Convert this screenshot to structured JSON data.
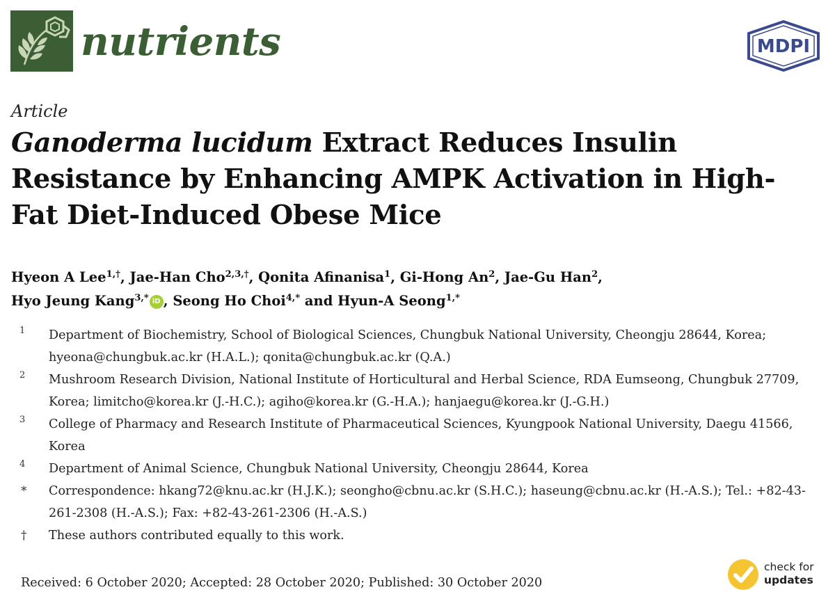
{
  "header": {
    "journal_name": "nutrients",
    "publisher_logo_text": "MDPI",
    "journal_logo_icon": "leaf-molecule-icon"
  },
  "article": {
    "type": "Article",
    "title_italic": "Ganoderma lucidum",
    "title_rest": " Extract Reduces Insulin Resistance by Enhancing AMPK Activation in High-Fat Diet-Induced Obese Mice"
  },
  "authors": [
    {
      "name": "Hyeon A Lee",
      "sup": "1,†",
      "sep": ", "
    },
    {
      "name": "Jae-Han Cho",
      "sup": "2,3,†",
      "sep": ", "
    },
    {
      "name": "Qonita Afinanisa",
      "sup": "1",
      "sep": ", "
    },
    {
      "name": "Gi-Hong An",
      "sup": "2",
      "sep": ", "
    },
    {
      "name": "Jae-Gu Han",
      "sup": "2",
      "sep": ", "
    },
    {
      "name": "Hyo Jeung Kang",
      "sup": "3,*",
      "sep": ", "
    },
    {
      "name": "Seong Ho Choi",
      "sup": "4,*",
      "sep": " and "
    },
    {
      "name": "Hyun-A Seong",
      "sup": "1,*",
      "sep": ""
    }
  ],
  "orcid_label": "iD",
  "affiliations": [
    {
      "mark": "1",
      "text": "Department of Biochemistry, School of Biological Sciences, Chungbuk National University, Cheongju 28644, Korea; hyeona@chungbuk.ac.kr (H.A.L.); qonita@chungbuk.ac.kr (Q.A.)"
    },
    {
      "mark": "2",
      "text": "Mushroom Research Division, National Institute of Horticultural and Herbal Science, RDA Eumseong, Chungbuk 27709, Korea; limitcho@korea.kr (J.-H.C.); agiho@korea.kr (G.-H.A.); hanjaegu@korea.kr (J.-G.H.)"
    },
    {
      "mark": "3",
      "text": "College of Pharmacy and Research Institute of Pharmaceutical Sciences, Kyungpook National University, Daegu 41566, Korea"
    },
    {
      "mark": "4",
      "text": "Department of Animal Science, Chungbuk National University, Cheongju 28644, Korea"
    },
    {
      "mark": "*",
      "text": "Correspondence: hkang72@knu.ac.kr (H.J.K.); seongho@cbnu.ac.kr (S.H.C.); haseung@cbnu.ac.kr (H.-A.S.); Tel.: +82-43-261-2308 (H.-A.S.); Fax: +82-43-261-2306 (H.-A.S.)"
    },
    {
      "mark": "†",
      "text": "These authors contributed equally to this work."
    }
  ],
  "dates": "Received: 6 October 2020; Accepted: 28 October 2020; Published: 30 October 2020",
  "check_updates": {
    "line1": "check for",
    "line2": "updates",
    "icon": "checkmark-icon",
    "color": "#f4c531"
  },
  "colors": {
    "journal_green": "#3c5e34",
    "mdpi_blue": "#3a4a8c",
    "orcid_green": "#a6ce39"
  }
}
